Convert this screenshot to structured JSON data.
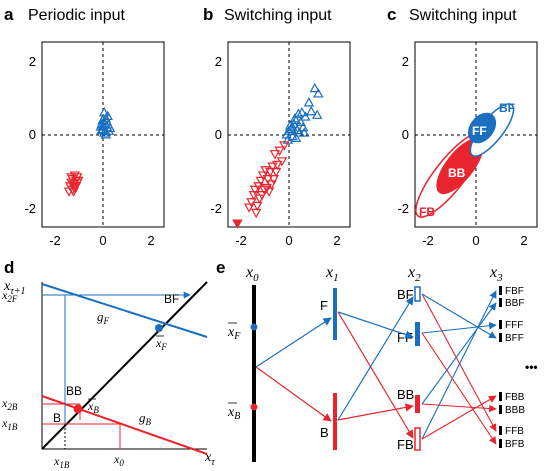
{
  "panels": {
    "a": {
      "label": "a",
      "title": "Periodic input"
    },
    "b": {
      "label": "b",
      "title": "Switching input"
    },
    "c": {
      "label": "c",
      "title": "Switching input",
      "ellipses": {
        "BF": "BF",
        "FF": "FF",
        "BB": "BB",
        "FB": "FB"
      }
    },
    "d": {
      "label": "d"
    },
    "e": {
      "label": "e"
    }
  },
  "ticks": {
    "x": [
      "-2",
      "0",
      "2"
    ],
    "y": [
      "2",
      "0",
      "-2"
    ]
  },
  "colors": {
    "blue": "#1a6fc0",
    "red": "#e8252e",
    "black": "#000000"
  },
  "chart_data": [
    {
      "panel": "a",
      "type": "scatter",
      "xlim": [
        -2.6,
        2.6
      ],
      "ylim": [
        -2.6,
        2.6
      ],
      "series": [
        {
          "color": "blue",
          "marker": "triangle-up",
          "x": [
            0.05,
            0.12,
            -0.05,
            0.22,
            0.0,
            0.1,
            -0.1,
            0.15,
            0.3,
            0.05,
            -0.02,
            0.18,
            0.08,
            0.25,
            -0.06,
            0.12,
            0.0,
            0.2
          ],
          "y": [
            0.62,
            0.45,
            0.3,
            0.28,
            0.15,
            0.1,
            0.22,
            0.38,
            0.18,
            0.05,
            0.4,
            0.2,
            0.32,
            0.1,
            0.12,
            0.0,
            0.25,
            0.52
          ]
        },
        {
          "color": "red",
          "marker": "triangle-down",
          "x": [
            -1.2,
            -1.15,
            -1.3,
            -1.1,
            -1.25,
            -1.35,
            -1.05,
            -1.2,
            -1.4,
            -1.3,
            -1.15,
            -1.25,
            -1.45,
            -1.1,
            -1.35
          ],
          "y": [
            -1.15,
            -1.3,
            -1.25,
            -1.2,
            -1.4,
            -1.35,
            -1.3,
            -1.5,
            -1.45,
            -1.55,
            -1.45,
            -1.6,
            -1.6,
            -1.35,
            -1.2
          ]
        }
      ]
    },
    {
      "panel": "b",
      "type": "scatter",
      "xlim": [
        -2.6,
        2.6
      ],
      "ylim": [
        -2.6,
        2.6
      ],
      "series": [
        {
          "color": "blue",
          "marker": "triangle-up",
          "x": [
            1.1,
            1.25,
            0.85,
            1.2,
            0.95,
            0.7,
            0.55,
            0.4,
            0.3,
            0.5,
            0.6,
            0.2,
            0.1,
            0.35,
            0.0,
            0.15,
            -0.1,
            0.25,
            0.45,
            0.05,
            -0.05,
            0.3,
            0.65,
            0.15
          ],
          "y": [
            1.3,
            1.15,
            0.9,
            0.55,
            0.65,
            0.5,
            0.62,
            0.58,
            0.4,
            0.35,
            0.2,
            0.3,
            0.15,
            0.12,
            0.1,
            -0.05,
            0.0,
            0.45,
            0.05,
            0.25,
            -0.15,
            -0.1,
            0.05,
            0.2
          ]
        },
        {
          "color": "red",
          "marker": "triangle-down",
          "x": [
            -0.2,
            -0.4,
            -0.3,
            -0.6,
            -0.5,
            -0.7,
            -0.8,
            -1.0,
            -0.9,
            -1.1,
            -1.2,
            -0.65,
            -0.75,
            -0.95,
            -1.05,
            -1.3,
            -1.45,
            -1.5,
            -1.25,
            -1.6,
            -0.85,
            -0.55,
            -1.15,
            -1.35,
            -1.7,
            -1.4
          ],
          "y": [
            -0.3,
            -0.45,
            -0.75,
            -0.55,
            -0.85,
            -0.9,
            -1.05,
            -1.0,
            -1.25,
            -1.15,
            -1.3,
            -1.25,
            -1.4,
            -1.5,
            -1.55,
            -1.45,
            -1.55,
            -1.7,
            -1.8,
            -1.9,
            -1.6,
            -1.05,
            -1.7,
            -2.0,
            -2.05,
            -2.2
          ]
        },
        {
          "color": "red",
          "marker": "triangle-down-filled",
          "x": [
            -2.2
          ],
          "y": [
            -2.5
          ]
        }
      ]
    }
  ],
  "panel_d": {
    "y_axis_label": "x",
    "y_axis_sub": "τ+1",
    "x_axis_label": "x",
    "x_axis_sub": "τ",
    "x2F": "x",
    "x2F_sub": "2F",
    "x2B": "x",
    "x2B_sub": "2B",
    "x1B": "x",
    "x1B_sub": "1B",
    "x1B_bottom": "x",
    "x1B_bottom_sub": "1B",
    "x0": "x",
    "x0_sub": "0",
    "gF": "g",
    "gF_sub": "F",
    "gB": "g",
    "gB_sub": "B",
    "BF": "BF",
    "BB": "BB",
    "B": "B",
    "xF_bar": "x",
    "xF_bar_sub": "F",
    "xB_bar": "x",
    "xB_bar_sub": "B"
  },
  "panel_e": {
    "headers": [
      {
        "main": "x",
        "sub": "0"
      },
      {
        "main": "x",
        "sub": "1"
      },
      {
        "main": "x",
        "sub": "2"
      },
      {
        "main": "x",
        "sub": "3"
      }
    ],
    "xF_bar": "x",
    "xF_bar_sub": "F",
    "xB_bar": "x",
    "xB_bar_sub": "B",
    "x1_labels": {
      "F": "F",
      "B": "B"
    },
    "x2_labels": {
      "BF": "BF",
      "FF": "FF",
      "BB": "BB",
      "FB": "FB"
    },
    "x3_labels": [
      "FBF",
      "BBF",
      "FFF",
      "BFF",
      "FBB",
      "BBB",
      "FFB",
      "BFB"
    ],
    "ellipsis": "•••"
  }
}
